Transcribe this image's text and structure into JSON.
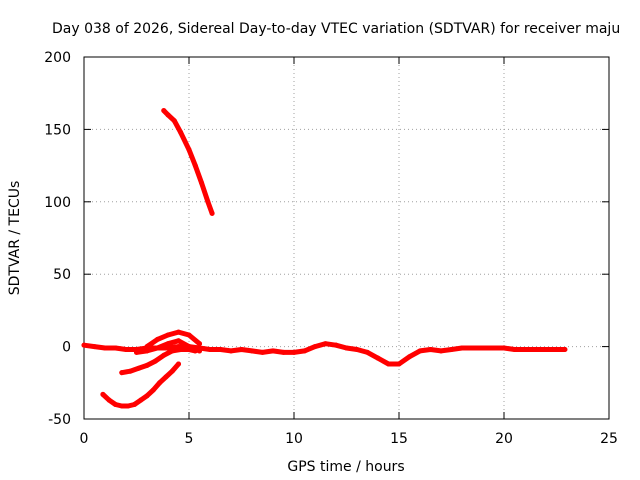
{
  "chart_data": {
    "type": "line",
    "title": "Day 038 of 2026, Sidereal Day-to-day VTEC variation (SDTVAR) for receiver maju",
    "xlabel": "GPS time / hours",
    "ylabel": "SDTVAR / TECUs",
    "xlim": [
      0,
      25
    ],
    "ylim": [
      -50,
      200
    ],
    "xticks": [
      0,
      5,
      10,
      15,
      20,
      25
    ],
    "yticks": [
      -50,
      0,
      50,
      100,
      150,
      200
    ],
    "grid": true,
    "series_color": "#ff0000",
    "series": [
      {
        "name": "main-track",
        "x": [
          0.0,
          0.5,
          1.0,
          1.5,
          2.0,
          2.5,
          3.0,
          3.5,
          4.0,
          4.5,
          5.0,
          5.5,
          6.0,
          6.5,
          7.0,
          7.5,
          8.0,
          8.5,
          9.0,
          9.5,
          10.0,
          10.5,
          11.0,
          11.5,
          12.0,
          12.5,
          13.0,
          13.5,
          14.0,
          14.5,
          15.0,
          15.5,
          16.0,
          16.5,
          17.0,
          17.5,
          18.0,
          18.5,
          19.0,
          19.5,
          20.0,
          20.5,
          21.0,
          21.5,
          22.0,
          22.5,
          22.9
        ],
        "y": [
          1,
          0,
          -1,
          -1,
          -2,
          -2,
          -1,
          -1,
          -1,
          0,
          0,
          -1,
          -2,
          -2,
          -3,
          -2,
          -3,
          -4,
          -3,
          -4,
          -4,
          -3,
          0,
          2,
          1,
          -1,
          -2,
          -4,
          -8,
          -12,
          -12,
          -7,
          -3,
          -2,
          -3,
          -2,
          -1,
          -1,
          -1,
          -1,
          -1,
          -2,
          -2,
          -2,
          -2,
          -2,
          -2
        ]
      },
      {
        "name": "upper-arc",
        "x": [
          3.0,
          3.5,
          4.0,
          4.5,
          5.0,
          5.5
        ],
        "y": [
          0,
          5,
          8,
          10,
          8,
          2
        ]
      },
      {
        "name": "mid-arc",
        "x": [
          2.5,
          3.0,
          3.5,
          4.0,
          4.5,
          5.0,
          5.5
        ],
        "y": [
          -4,
          -3,
          -1,
          2,
          4,
          0,
          -3
        ]
      },
      {
        "name": "descending-arc",
        "x": [
          3.8,
          4.0,
          4.3,
          4.6,
          5.0,
          5.3,
          5.6,
          5.9,
          6.1
        ],
        "y": [
          163,
          160,
          156,
          148,
          136,
          125,
          113,
          100,
          92
        ]
      },
      {
        "name": "lower-left-arc",
        "x": [
          0.9,
          1.2,
          1.5,
          1.8,
          2.1,
          2.4,
          2.7,
          3.0,
          3.3,
          3.6,
          3.9,
          4.2,
          4.5
        ],
        "y": [
          -33,
          -37,
          -40,
          -41,
          -41,
          -40,
          -37,
          -34,
          -30,
          -25,
          -21,
          -17,
          -12
        ]
      },
      {
        "name": "lower-mid-arc",
        "x": [
          1.8,
          2.2,
          2.6,
          3.0,
          3.4,
          3.8,
          4.2,
          4.6,
          5.0,
          5.3
        ],
        "y": [
          -18,
          -17,
          -15,
          -13,
          -10,
          -6,
          -3,
          -2,
          -2,
          -3
        ]
      }
    ]
  }
}
